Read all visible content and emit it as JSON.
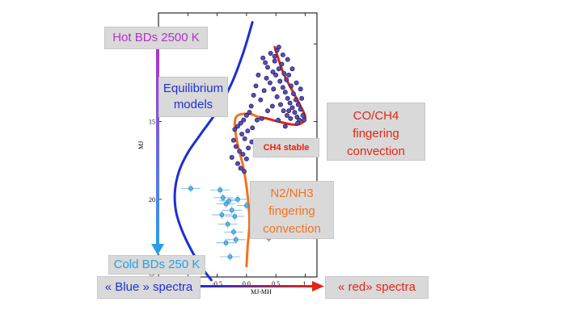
{
  "labels": {
    "hot": "Hot BDs 2500 K",
    "cold": "Cold BDs 250 K",
    "equilibrium": [
      "Equilibrium",
      "models"
    ],
    "coch4": [
      "CO/CH4",
      "fingering",
      "convection"
    ],
    "ch4_stable": "CH4 stable",
    "n2nh3": [
      "N2/NH3",
      "fingering",
      "convection"
    ],
    "blue_spectra": "« Blue » spectra",
    "red_spectra": "« red» spectra"
  },
  "colors": {
    "equilibrium": "#1c2fd6",
    "coch4": "#e22616",
    "n2nh3": "#f07322",
    "hot": "#b033c7",
    "cold": "#2a9ee8",
    "dwarf_points": "#5a4fb8",
    "cold_points": "#5bb6e6"
  },
  "chart_data": {
    "type": "scatter",
    "xlabel": "MJ-MH",
    "ylabel": "MJ",
    "xlim": [
      -1.5,
      1.2
    ],
    "ylim": [
      25,
      8
    ],
    "y_inverted": true,
    "xticks": [
      -1.0,
      -0.5,
      0.0,
      0.5,
      1.0
    ],
    "xtick_labels": [
      "-1.0",
      "-0.5",
      "0.0",
      "0.5",
      "1."
    ],
    "yticks": [
      10,
      15,
      20,
      25
    ],
    "ytick_labels": [
      "10",
      "15",
      "20",
      "25"
    ],
    "series": [
      {
        "kind": "points",
        "points": [
          [
            0.28,
            10.9
          ],
          [
            0.32,
            11.2
          ],
          [
            0.36,
            11.5
          ],
          [
            0.41,
            10.6
          ],
          [
            0.45,
            11.8
          ],
          [
            0.48,
            11.1
          ],
          [
            0.5,
            12.0
          ],
          [
            0.52,
            10.4
          ],
          [
            0.55,
            11.6
          ],
          [
            0.57,
            12.4
          ],
          [
            0.6,
            11.3
          ],
          [
            0.62,
            12.8
          ],
          [
            0.64,
            11.9
          ],
          [
            0.66,
            13.1
          ],
          [
            0.68,
            12.3
          ],
          [
            0.7,
            13.5
          ],
          [
            0.72,
            12.0
          ],
          [
            0.74,
            13.8
          ],
          [
            0.76,
            12.7
          ],
          [
            0.78,
            14.1
          ],
          [
            0.8,
            13.2
          ],
          [
            0.82,
            14.4
          ],
          [
            0.84,
            13.6
          ],
          [
            0.86,
            14.7
          ],
          [
            0.88,
            13.9
          ],
          [
            0.9,
            14.9
          ],
          [
            0.92,
            14.2
          ],
          [
            0.94,
            13.5
          ],
          [
            0.96,
            14.6
          ],
          [
            0.98,
            14.9
          ],
          [
            0.58,
            13.9
          ],
          [
            0.63,
            14.3
          ],
          [
            0.69,
            14.6
          ],
          [
            0.75,
            14.8
          ],
          [
            0.52,
            13.4
          ],
          [
            0.46,
            12.9
          ],
          [
            0.4,
            12.5
          ],
          [
            0.34,
            12.2
          ],
          [
            0.3,
            13.0
          ],
          [
            0.24,
            13.6
          ],
          [
            0.2,
            12.0
          ],
          [
            0.16,
            12.7
          ],
          [
            0.12,
            13.3
          ],
          [
            0.08,
            14.0
          ],
          [
            0.05,
            14.4
          ],
          [
            0.0,
            14.6
          ],
          [
            -0.05,
            14.9
          ],
          [
            -0.1,
            15.1
          ],
          [
            -0.15,
            15.3
          ],
          [
            -0.2,
            15.5
          ],
          [
            -0.08,
            15.8
          ],
          [
            -0.03,
            16.1
          ],
          [
            0.02,
            15.6
          ],
          [
            0.1,
            15.4
          ],
          [
            0.18,
            14.9
          ],
          [
            0.26,
            14.8
          ],
          [
            -0.22,
            16.2
          ],
          [
            -0.18,
            16.6
          ],
          [
            -0.12,
            16.9
          ],
          [
            -0.06,
            17.1
          ],
          [
            0.0,
            17.4
          ],
          [
            -0.15,
            17.7
          ],
          [
            -0.1,
            18.0
          ],
          [
            -0.04,
            18.2
          ],
          [
            0.03,
            16.7
          ],
          [
            0.09,
            16.3
          ],
          [
            -0.25,
            17.3
          ],
          [
            0.36,
            14.3
          ],
          [
            0.44,
            14.0
          ],
          [
            0.54,
            14.9
          ],
          [
            0.66,
            15.3
          ],
          [
            0.72,
            14.3
          ],
          [
            0.85,
            12.5
          ],
          [
            0.78,
            11.6
          ],
          [
            0.7,
            11.0
          ],
          [
            0.62,
            10.7
          ],
          [
            0.55,
            10.2
          ],
          [
            0.48,
            10.8
          ],
          [
            0.92,
            12.9
          ],
          [
            0.87,
            15.1
          ]
        ]
      },
      {
        "kind": "error-points",
        "points": [
          [
            -0.95,
            19.3
          ],
          [
            -0.45,
            19.4
          ],
          [
            -0.4,
            19.9
          ],
          [
            -0.35,
            20.3
          ],
          [
            -0.3,
            20.1
          ],
          [
            -0.25,
            20.7
          ],
          [
            -0.2,
            21.1
          ],
          [
            -0.15,
            20.0
          ],
          [
            -0.32,
            21.6
          ],
          [
            -0.22,
            22.1
          ],
          [
            0.0,
            20.4
          ],
          [
            -0.35,
            22.8
          ],
          [
            -0.28,
            23.7
          ],
          [
            -0.18,
            22.6
          ],
          [
            0.38,
            22.5
          ],
          [
            -0.42,
            21.0
          ]
        ]
      },
      {
        "kind": "curve",
        "name": "Equilibrium models",
        "points": [
          [
            0.1,
            8.6
          ],
          [
            -0.05,
            10.5
          ],
          [
            -0.25,
            12.5
          ],
          [
            -0.5,
            14.3
          ],
          [
            -0.78,
            15.8
          ],
          [
            -1.0,
            17.0
          ],
          [
            -1.15,
            18.2
          ],
          [
            -1.22,
            19.5
          ],
          [
            -1.2,
            20.8
          ],
          [
            -1.1,
            22.0
          ],
          [
            -0.95,
            23.2
          ],
          [
            -0.78,
            24.3
          ],
          [
            -0.6,
            25.2
          ]
        ]
      },
      {
        "kind": "curve",
        "name": "CO/CH4 fingering convection",
        "points": [
          [
            0.48,
            10.2
          ],
          [
            0.62,
            11.8
          ],
          [
            0.78,
            13.0
          ],
          [
            0.92,
            14.0
          ],
          [
            1.0,
            14.8
          ],
          [
            0.85,
            15.2
          ],
          [
            0.55,
            15.0
          ],
          [
            0.35,
            14.8
          ],
          [
            0.2,
            14.7
          ],
          [
            0.05,
            14.5
          ],
          [
            -0.15,
            14.6
          ],
          [
            -0.2,
            15.2
          ],
          [
            -0.15,
            16.5
          ],
          [
            -0.05,
            18.0
          ],
          [
            0.02,
            19.8
          ],
          [
            0.05,
            21.5
          ],
          [
            0.02,
            23.0
          ],
          [
            0.0,
            24.3
          ]
        ]
      }
    ]
  }
}
